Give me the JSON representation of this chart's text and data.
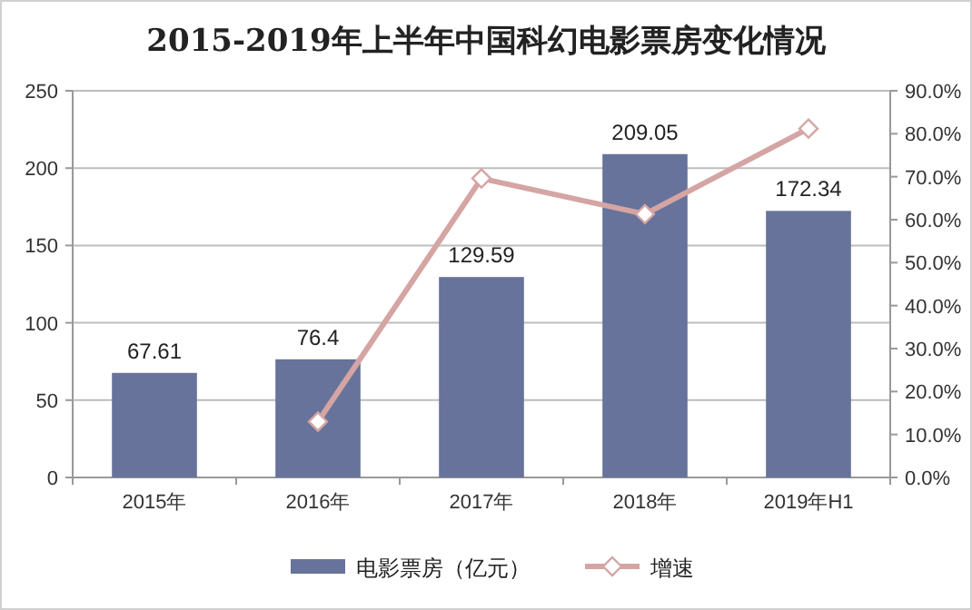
{
  "chart_data": {
    "type": "bar",
    "title": "2015-2019年上半年中国科幻电影票房变化情况",
    "categories": [
      "2015年",
      "2016年",
      "2017年",
      "2018年",
      "2019年H1"
    ],
    "series": [
      {
        "name": "电影票房（亿元）",
        "color": "#67739a",
        "values": [
          67.61,
          76.4,
          129.59,
          209.05,
          172.34
        ],
        "data_labels": true
      },
      {
        "name": "增速",
        "type": "line",
        "axis": "y2",
        "color": "#d4a5a3",
        "marker": "diamond",
        "values": [
          null,
          13.0,
          69.6,
          61.3,
          81.2
        ]
      }
    ],
    "ylim": [
      0,
      250
    ],
    "yticks": [
      0,
      50,
      100,
      150,
      200,
      250
    ],
    "y2lim": [
      0,
      90
    ],
    "y2ticks": [
      {
        "value": 0,
        "label": "0.0%"
      },
      {
        "value": 10,
        "label": "10.0%"
      },
      {
        "value": 20,
        "label": "20.0%"
      },
      {
        "value": 30,
        "label": "30.0%"
      },
      {
        "value": 40,
        "label": "40.0%"
      },
      {
        "value": 50,
        "label": "50.0%"
      },
      {
        "value": 60,
        "label": "60.0%"
      },
      {
        "value": 70,
        "label": "70.0%"
      },
      {
        "value": 80,
        "label": "80.0%"
      },
      {
        "value": 90,
        "label": "90.0%"
      }
    ],
    "grid": "y",
    "legend": "bottom"
  }
}
